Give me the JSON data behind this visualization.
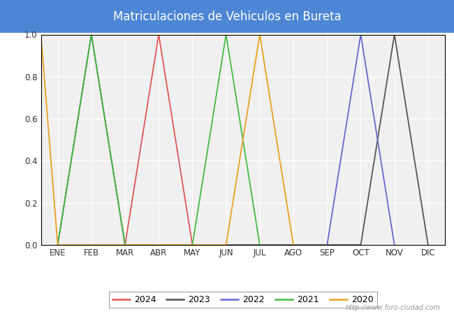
{
  "title": "Matriculaciones de Vehiculos en Bureta",
  "title_bg": "#4d86d4",
  "title_color": "white",
  "months": [
    "ENE",
    "FEB",
    "MAR",
    "ABR",
    "MAY",
    "JUN",
    "JUL",
    "AGO",
    "SEP",
    "OCT",
    "NOV",
    "DIC"
  ],
  "month_indices": [
    1,
    2,
    3,
    4,
    5,
    6,
    7,
    8,
    9,
    10,
    11,
    12
  ],
  "series": {
    "2024": {
      "color": "#e05555",
      "points": [
        [
          3,
          0
        ],
        [
          4,
          1
        ],
        [
          5,
          0
        ]
      ]
    },
    "2023": {
      "color": "#555555",
      "points": [
        [
          1,
          0
        ],
        [
          2,
          1
        ],
        [
          3,
          0
        ],
        [
          10,
          0
        ],
        [
          11,
          1
        ],
        [
          12,
          0
        ]
      ]
    },
    "2022": {
      "color": "#6666cc",
      "points": [
        [
          9,
          0
        ],
        [
          10,
          1
        ],
        [
          11,
          0
        ]
      ]
    },
    "2021": {
      "color": "#44bb44",
      "points": [
        [
          1,
          0
        ],
        [
          2,
          1
        ],
        [
          3,
          0
        ],
        [
          5,
          0
        ],
        [
          6,
          1
        ],
        [
          7,
          0
        ]
      ]
    },
    "2020": {
      "color": "#e8a020",
      "points": [
        [
          0.5,
          1
        ],
        [
          1,
          0
        ],
        [
          6,
          0
        ],
        [
          7,
          1
        ],
        [
          8,
          0
        ]
      ]
    }
  },
  "legend_order": [
    "2024",
    "2023",
    "2022",
    "2021",
    "2020"
  ],
  "ylim": [
    0.0,
    1.0
  ],
  "yticks": [
    0.0,
    0.2,
    0.4,
    0.6,
    0.8,
    1.0
  ],
  "plot_bg": "#f0f0f0",
  "outer_bg": "#ffffff",
  "grid_color": "#ffffff",
  "watermark": "http://www.foro-ciudad.com",
  "figsize": [
    6.5,
    4.5
  ],
  "dpi": 100
}
